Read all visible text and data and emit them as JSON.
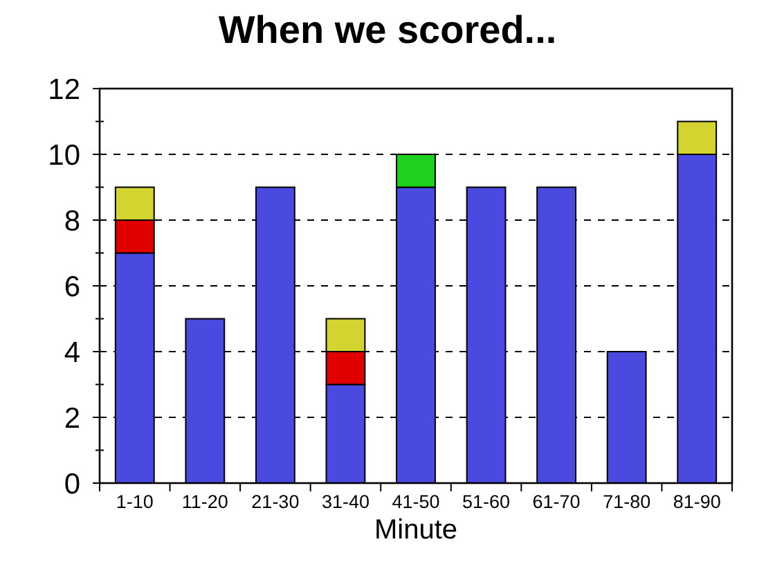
{
  "chart_data": {
    "type": "bar",
    "title": "When we scored...",
    "xlabel": "Minute",
    "categories": [
      "1-10",
      "11-20",
      "21-30",
      "31-40",
      "41-50",
      "51-60",
      "61-70",
      "71-80",
      "81-90"
    ],
    "series": [
      {
        "color": "#4a4ae0",
        "values": [
          7,
          5,
          9,
          3,
          9,
          9,
          9,
          4,
          10
        ]
      },
      {
        "color": "#e00000",
        "values": [
          1,
          0,
          0,
          1,
          0,
          0,
          0,
          0,
          0
        ]
      },
      {
        "color": "#1fd11f",
        "values": [
          0,
          0,
          0,
          0,
          1,
          0,
          0,
          0,
          0
        ]
      },
      {
        "color": "#d4d430",
        "values": [
          1,
          0,
          0,
          1,
          0,
          0,
          0,
          0,
          1
        ]
      }
    ],
    "stacked": true,
    "ylim": [
      0,
      12
    ],
    "yticks": [
      0,
      {
        "value": 1,
        "label": null
      },
      2,
      {
        "value": 3,
        "label": null
      },
      4,
      {
        "value": 5,
        "label": null
      },
      6,
      {
        "value": 7,
        "label": null
      },
      8,
      {
        "value": 9,
        "label": null
      },
      10,
      {
        "value": 11,
        "label": null
      },
      12
    ],
    "grid": "y"
  }
}
